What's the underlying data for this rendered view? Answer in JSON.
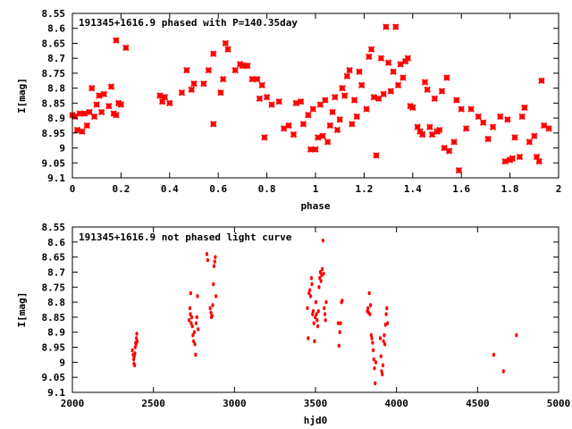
{
  "chart_data": [
    {
      "type": "scatter",
      "title": "191345+1616.9 phased with P=140.35day",
      "xlabel": "phase",
      "ylabel": "I[mag]",
      "xlim": [
        0,
        2
      ],
      "ylim": [
        9.1,
        8.55
      ],
      "y_inverted": true,
      "xticks": [
        "0",
        "0.2",
        "0.4",
        "0.6",
        "0.8",
        "1",
        "1.2",
        "1.4",
        "1.6",
        "1.8",
        "2"
      ],
      "yticks": [
        "8.55",
        "8.6",
        "8.65",
        "8.7",
        "8.75",
        "8.8",
        "8.85",
        "8.9",
        "8.95",
        "9",
        "9.05",
        "9.1"
      ],
      "grid": false,
      "marker": "cross",
      "color": "#ff0000",
      "points": [
        [
          0.0,
          8.89
        ],
        [
          0.01,
          8.895
        ],
        [
          0.02,
          8.94
        ],
        [
          0.03,
          8.885
        ],
        [
          0.04,
          8.945
        ],
        [
          0.05,
          8.885
        ],
        [
          0.06,
          8.925
        ],
        [
          0.07,
          8.88
        ],
        [
          0.08,
          8.8
        ],
        [
          0.09,
          8.895
        ],
        [
          0.1,
          8.855
        ],
        [
          0.11,
          8.825
        ],
        [
          0.12,
          8.88
        ],
        [
          0.13,
          8.82
        ],
        [
          0.15,
          8.86
        ],
        [
          0.16,
          8.795
        ],
        [
          0.17,
          8.885
        ],
        [
          0.18,
          8.89
        ],
        [
          0.18,
          8.64
        ],
        [
          0.19,
          8.85
        ],
        [
          0.2,
          8.855
        ],
        [
          0.22,
          8.665
        ],
        [
          0.36,
          8.825
        ],
        [
          0.37,
          8.845
        ],
        [
          0.38,
          8.83
        ],
        [
          0.4,
          8.85
        ],
        [
          0.45,
          8.815
        ],
        [
          0.47,
          8.74
        ],
        [
          0.49,
          8.805
        ],
        [
          0.5,
          8.785
        ],
        [
          0.54,
          8.785
        ],
        [
          0.56,
          8.74
        ],
        [
          0.58,
          8.92
        ],
        [
          0.58,
          8.685
        ],
        [
          0.61,
          8.815
        ],
        [
          0.62,
          8.77
        ],
        [
          0.63,
          8.65
        ],
        [
          0.64,
          8.67
        ],
        [
          0.67,
          8.74
        ],
        [
          0.69,
          8.72
        ],
        [
          0.7,
          8.725
        ],
        [
          0.71,
          8.725
        ],
        [
          0.72,
          8.725
        ],
        [
          0.74,
          8.77
        ],
        [
          0.76,
          8.77
        ],
        [
          0.77,
          8.835
        ],
        [
          0.78,
          8.79
        ],
        [
          0.79,
          8.965
        ],
        [
          0.8,
          8.83
        ],
        [
          0.82,
          8.855
        ],
        [
          0.85,
          8.845
        ],
        [
          0.87,
          8.935
        ],
        [
          0.89,
          8.925
        ],
        [
          0.91,
          8.955
        ],
        [
          0.92,
          8.85
        ],
        [
          0.94,
          8.845
        ],
        [
          0.95,
          8.92
        ],
        [
          0.97,
          8.89
        ],
        [
          0.98,
          9.005
        ],
        [
          0.99,
          8.87
        ],
        [
          1.0,
          9.005
        ],
        [
          1.01,
          8.965
        ],
        [
          1.02,
          8.855
        ],
        [
          1.03,
          8.96
        ],
        [
          1.04,
          8.84
        ],
        [
          1.05,
          8.98
        ],
        [
          1.06,
          8.925
        ],
        [
          1.07,
          8.88
        ],
        [
          1.08,
          8.83
        ],
        [
          1.09,
          8.94
        ],
        [
          1.1,
          8.905
        ],
        [
          1.11,
          8.8
        ],
        [
          1.12,
          8.825
        ],
        [
          1.13,
          8.76
        ],
        [
          1.14,
          8.74
        ],
        [
          1.15,
          8.92
        ],
        [
          1.16,
          8.84
        ],
        [
          1.17,
          8.895
        ],
        [
          1.18,
          8.745
        ],
        [
          1.19,
          8.79
        ],
        [
          1.21,
          8.87
        ],
        [
          1.22,
          8.695
        ],
        [
          1.23,
          8.67
        ],
        [
          1.24,
          8.83
        ],
        [
          1.25,
          9.025
        ],
        [
          1.26,
          8.835
        ],
        [
          1.27,
          8.7
        ],
        [
          1.28,
          8.82
        ],
        [
          1.29,
          8.595
        ],
        [
          1.3,
          8.715
        ],
        [
          1.31,
          8.81
        ],
        [
          1.32,
          8.745
        ],
        [
          1.33,
          8.595
        ],
        [
          1.34,
          8.79
        ],
        [
          1.35,
          8.72
        ],
        [
          1.36,
          8.765
        ],
        [
          1.37,
          8.71
        ],
        [
          1.38,
          8.7
        ],
        [
          1.39,
          8.86
        ],
        [
          1.4,
          8.865
        ],
        [
          1.42,
          8.93
        ],
        [
          1.43,
          8.945
        ],
        [
          1.44,
          8.955
        ],
        [
          1.45,
          8.78
        ],
        [
          1.46,
          8.805
        ],
        [
          1.47,
          8.93
        ],
        [
          1.48,
          8.955
        ],
        [
          1.49,
          8.835
        ],
        [
          1.5,
          8.945
        ],
        [
          1.51,
          8.94
        ],
        [
          1.52,
          8.81
        ],
        [
          1.53,
          9.0
        ],
        [
          1.54,
          8.765
        ],
        [
          1.55,
          9.01
        ],
        [
          1.57,
          8.98
        ],
        [
          1.58,
          8.84
        ],
        [
          1.59,
          9.075
        ],
        [
          1.6,
          8.87
        ],
        [
          1.62,
          8.935
        ],
        [
          1.64,
          8.87
        ],
        [
          1.67,
          8.895
        ],
        [
          1.69,
          8.915
        ],
        [
          1.71,
          8.97
        ],
        [
          1.73,
          8.93
        ],
        [
          1.76,
          8.895
        ],
        [
          1.78,
          9.045
        ],
        [
          1.79,
          8.905
        ],
        [
          1.8,
          9.04
        ],
        [
          1.81,
          9.035
        ],
        [
          1.82,
          8.965
        ],
        [
          1.84,
          9.03
        ],
        [
          1.85,
          8.895
        ],
        [
          1.86,
          8.865
        ],
        [
          1.88,
          8.98
        ],
        [
          1.9,
          8.96
        ],
        [
          1.91,
          9.03
        ],
        [
          1.92,
          9.045
        ],
        [
          1.93,
          8.775
        ],
        [
          1.94,
          8.925
        ],
        [
          1.96,
          8.935
        ]
      ]
    },
    {
      "type": "scatter",
      "title": "191345+1616.9 not phased light curve",
      "xlabel": "hjd0",
      "ylabel": "I[mag]",
      "xlim": [
        2000,
        5000
      ],
      "ylim": [
        9.1,
        8.55
      ],
      "y_inverted": true,
      "xticks": [
        "2000",
        "2500",
        "3000",
        "3500",
        "4000",
        "4500",
        "5000"
      ],
      "yticks": [
        "8.55",
        "8.6",
        "8.65",
        "8.7",
        "8.75",
        "8.8",
        "8.85",
        "8.9",
        "8.95",
        "9",
        "9.05",
        "9.1"
      ],
      "grid": false,
      "marker": "dot",
      "color": "#ff0000",
      "points": [
        [
          2370,
          8.96
        ],
        [
          2375,
          8.975
        ],
        [
          2378,
          8.99
        ],
        [
          2380,
          9.005
        ],
        [
          2382,
          8.98
        ],
        [
          2384,
          9.01
        ],
        [
          2386,
          8.97
        ],
        [
          2388,
          8.95
        ],
        [
          2390,
          8.935
        ],
        [
          2393,
          8.94
        ],
        [
          2395,
          8.92
        ],
        [
          2397,
          8.905
        ],
        [
          2400,
          8.93
        ],
        [
          2720,
          8.86
        ],
        [
          2725,
          8.82
        ],
        [
          2728,
          8.84
        ],
        [
          2730,
          8.77
        ],
        [
          2733,
          8.87
        ],
        [
          2736,
          8.85
        ],
        [
          2740,
          8.88
        ],
        [
          2744,
          8.91
        ],
        [
          2748,
          8.93
        ],
        [
          2752,
          8.9
        ],
        [
          2756,
          8.94
        ],
        [
          2760,
          8.975
        ],
        [
          2764,
          8.87
        ],
        [
          2768,
          8.85
        ],
        [
          2772,
          8.78
        ],
        [
          2776,
          8.89
        ],
        [
          2830,
          8.64
        ],
        [
          2835,
          8.66
        ],
        [
          2850,
          8.82
        ],
        [
          2855,
          8.835
        ],
        [
          2858,
          8.85
        ],
        [
          2862,
          8.845
        ],
        [
          2866,
          8.81
        ],
        [
          2870,
          8.74
        ],
        [
          2874,
          8.68
        ],
        [
          2878,
          8.665
        ],
        [
          2882,
          8.65
        ],
        [
          2886,
          8.78
        ],
        [
          3450,
          8.82
        ],
        [
          3455,
          8.92
        ],
        [
          3460,
          8.77
        ],
        [
          3465,
          8.76
        ],
        [
          3470,
          8.78
        ],
        [
          3475,
          8.72
        ],
        [
          3478,
          8.74
        ],
        [
          3482,
          8.84
        ],
        [
          3486,
          8.83
        ],
        [
          3490,
          8.87
        ],
        [
          3494,
          8.93
        ],
        [
          3498,
          8.85
        ],
        [
          3502,
          8.8
        ],
        [
          3506,
          8.84
        ],
        [
          3510,
          8.86
        ],
        [
          3514,
          8.88
        ],
        [
          3518,
          8.83
        ],
        [
          3522,
          8.75
        ],
        [
          3526,
          8.72
        ],
        [
          3530,
          8.7
        ],
        [
          3534,
          8.73
        ],
        [
          3538,
          8.71
        ],
        [
          3542,
          8.69
        ],
        [
          3546,
          8.595
        ],
        [
          3550,
          8.705
        ],
        [
          3554,
          8.82
        ],
        [
          3558,
          8.84
        ],
        [
          3562,
          8.86
        ],
        [
          3566,
          8.8
        ],
        [
          3640,
          8.87
        ],
        [
          3645,
          8.945
        ],
        [
          3650,
          8.9
        ],
        [
          3655,
          8.87
        ],
        [
          3660,
          8.8
        ],
        [
          3665,
          8.795
        ],
        [
          3820,
          8.83
        ],
        [
          3824,
          8.82
        ],
        [
          3828,
          8.835
        ],
        [
          3832,
          8.77
        ],
        [
          3836,
          8.84
        ],
        [
          3840,
          8.81
        ],
        [
          3844,
          8.91
        ],
        [
          3848,
          8.92
        ],
        [
          3852,
          8.935
        ],
        [
          3856,
          8.96
        ],
        [
          3860,
          8.99
        ],
        [
          3864,
          9.02
        ],
        [
          3868,
          9.07
        ],
        [
          3872,
          9.0
        ],
        [
          3900,
          8.92
        ],
        [
          3904,
          8.98
        ],
        [
          3908,
          9.03
        ],
        [
          3912,
          9.04
        ],
        [
          3916,
          9.01
        ],
        [
          3920,
          8.93
        ],
        [
          3924,
          8.91
        ],
        [
          3928,
          8.94
        ],
        [
          3932,
          8.875
        ],
        [
          3936,
          8.84
        ],
        [
          3940,
          8.82
        ],
        [
          3944,
          8.87
        ],
        [
          4600,
          8.975
        ],
        [
          4660,
          9.03
        ],
        [
          4740,
          8.91
        ]
      ]
    }
  ]
}
